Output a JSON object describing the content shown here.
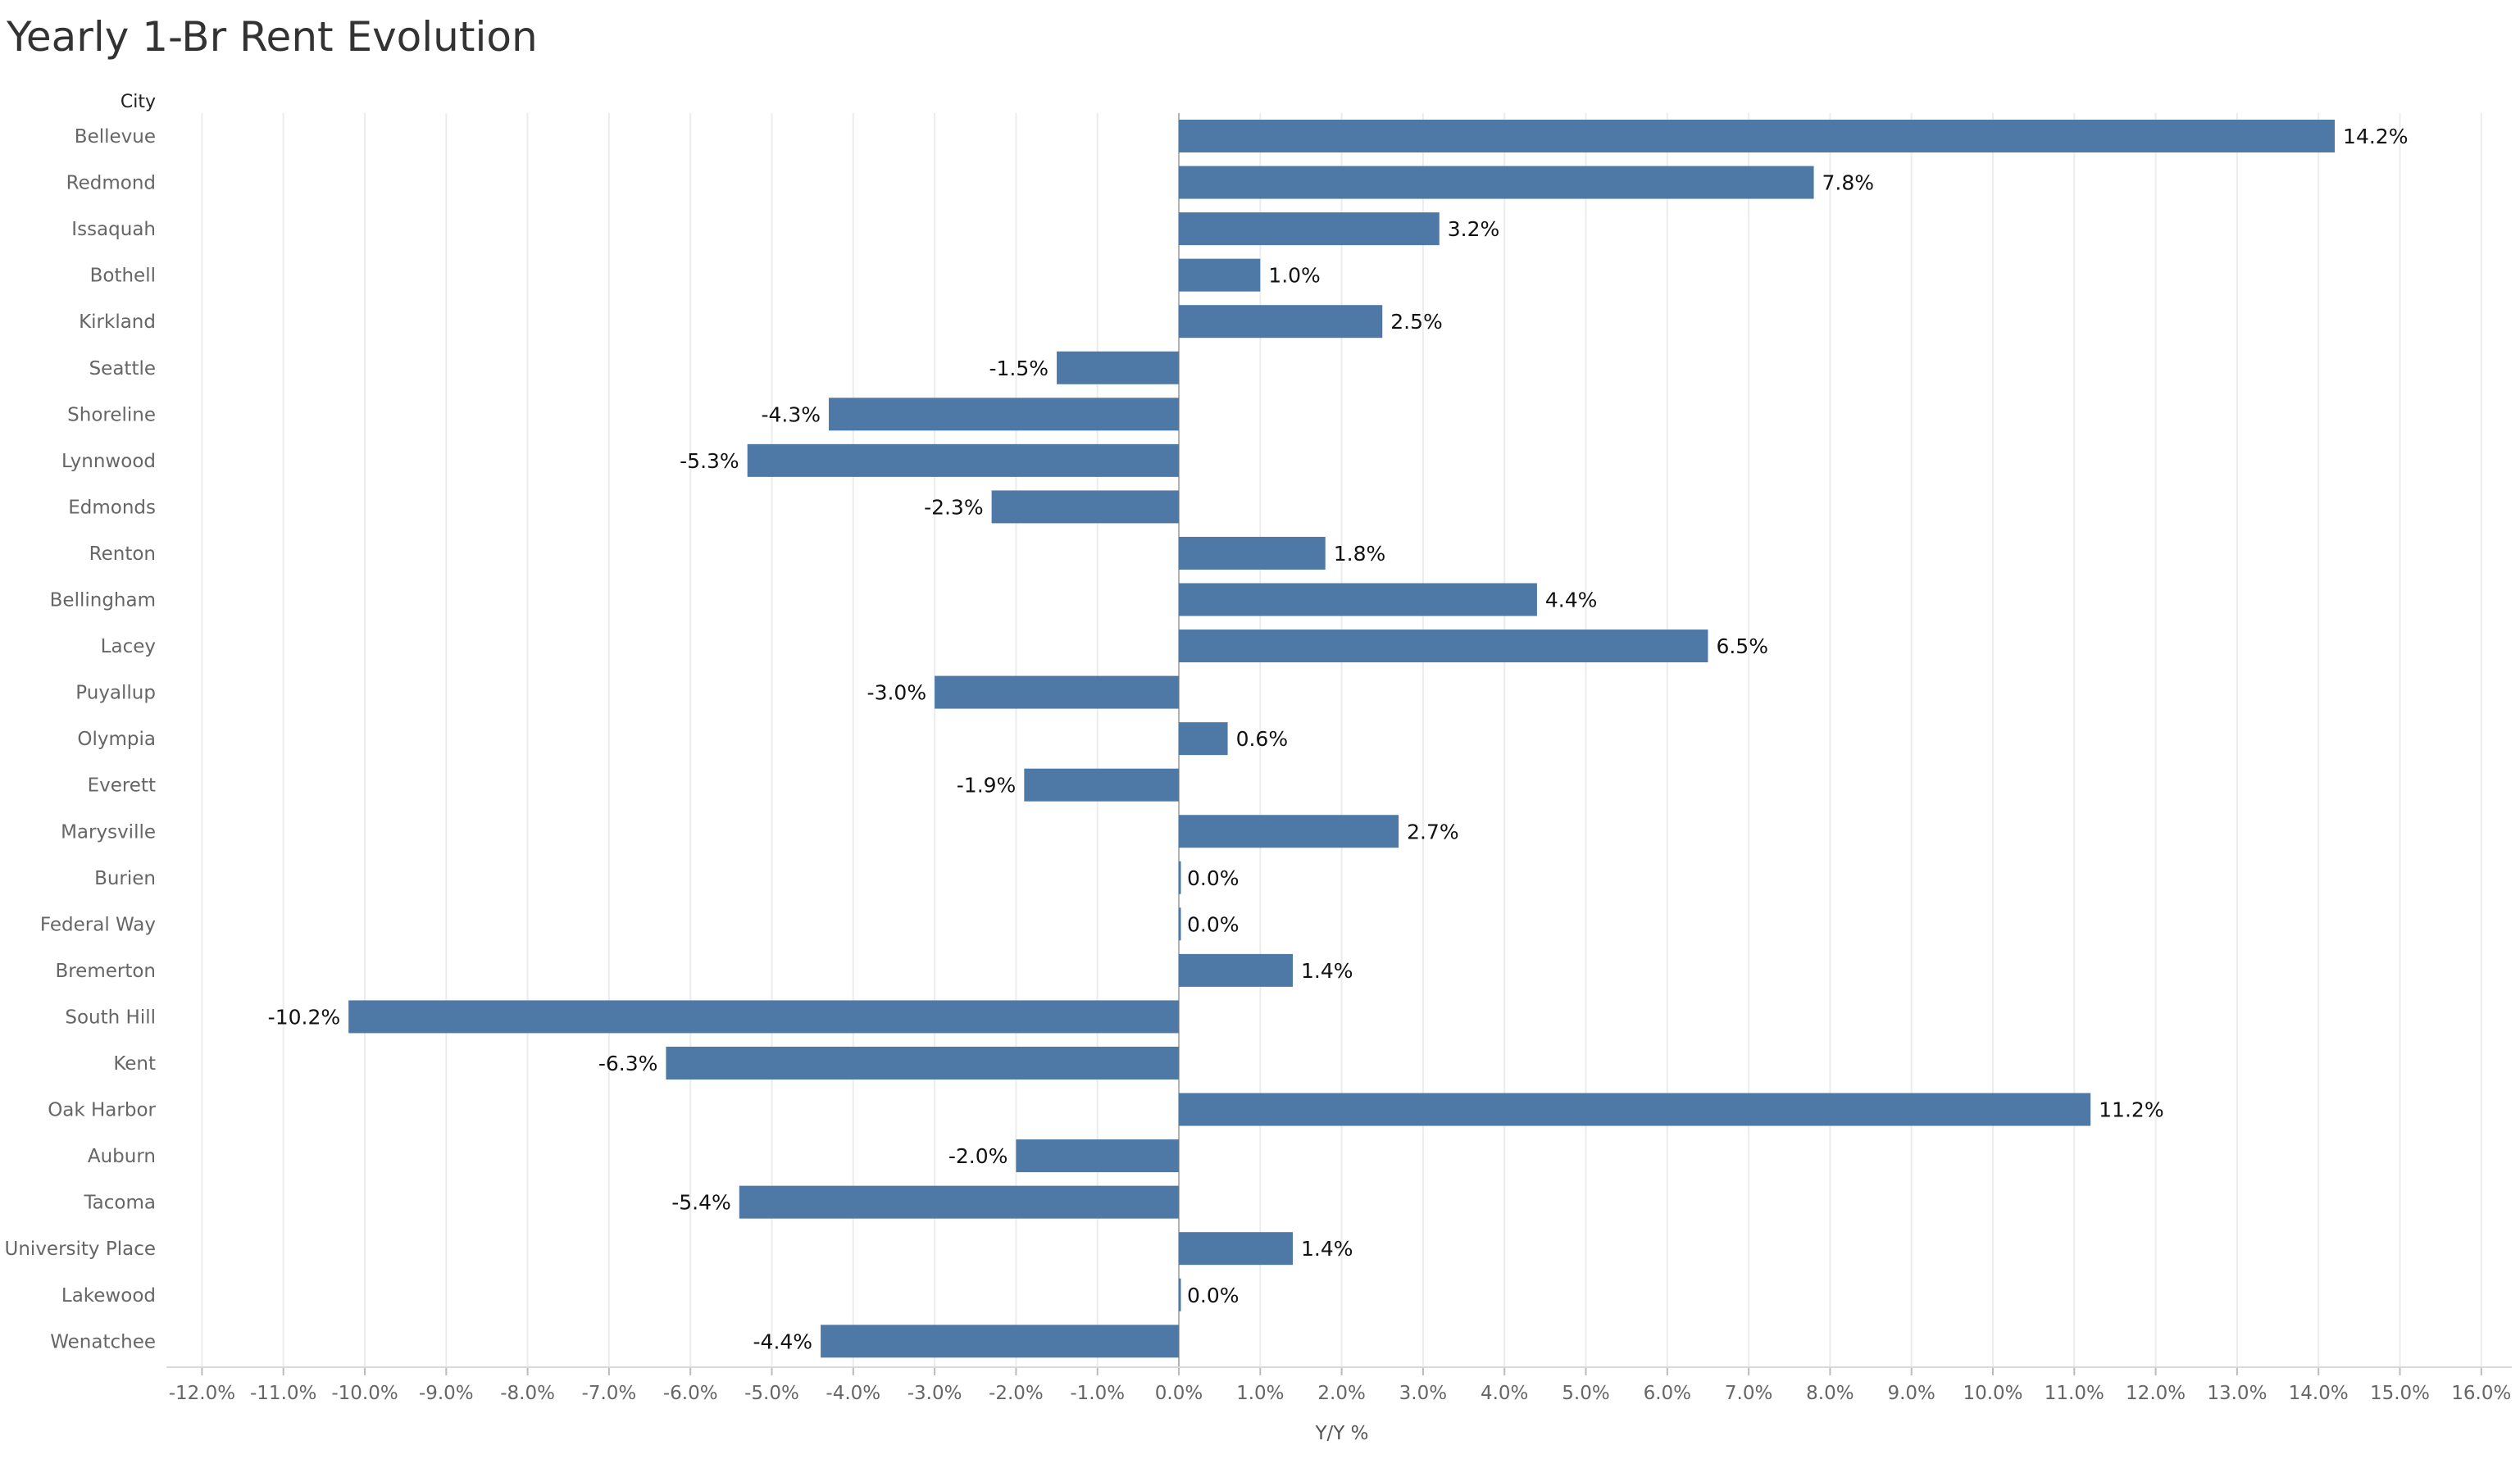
{
  "chart_data": {
    "type": "bar",
    "orientation": "horizontal",
    "title": "Yearly 1-Br Rent Evolution",
    "ylabel": "City",
    "xlabel": "Y/Y %",
    "xlim": [
      -12.5,
      16.4
    ],
    "x_ticks": [
      -12,
      -11,
      -10,
      -9,
      -8,
      -7,
      -6,
      -5,
      -4,
      -3,
      -2,
      -1,
      0,
      1,
      2,
      3,
      4,
      5,
      6,
      7,
      8,
      9,
      10,
      11,
      12,
      13,
      14,
      15,
      16
    ],
    "x_tick_labels": [
      "-12.0%",
      "-11.0%",
      "-10.0%",
      "-9.0%",
      "-8.0%",
      "-7.0%",
      "-6.0%",
      "-5.0%",
      "-4.0%",
      "-3.0%",
      "-2.0%",
      "-1.0%",
      "0.0%",
      "1.0%",
      "2.0%",
      "3.0%",
      "4.0%",
      "5.0%",
      "6.0%",
      "7.0%",
      "8.0%",
      "9.0%",
      "10.0%",
      "11.0%",
      "12.0%",
      "13.0%",
      "14.0%",
      "15.0%",
      "16.0%"
    ],
    "grid": "vertical",
    "bar_color": "#4e79a7",
    "categories": [
      "Bellevue",
      "Redmond",
      "Issaquah",
      "Bothell",
      "Kirkland",
      "Seattle",
      "Shoreline",
      "Lynnwood",
      "Edmonds",
      "Renton",
      "Bellingham",
      "Lacey",
      "Puyallup",
      "Olympia",
      "Everett",
      "Marysville",
      "Burien",
      "Federal Way",
      "Bremerton",
      "South Hill",
      "Kent",
      "Oak Harbor",
      "Auburn",
      "Tacoma",
      "University Place",
      "Lakewood",
      "Wenatchee"
    ],
    "values": [
      14.2,
      7.8,
      3.2,
      1.0,
      2.5,
      -1.5,
      -4.3,
      -5.3,
      -2.3,
      1.8,
      4.4,
      6.5,
      -3.0,
      0.6,
      -1.9,
      2.7,
      0.0,
      0.0,
      1.4,
      -10.2,
      -6.3,
      11.2,
      -2.0,
      -5.4,
      1.4,
      0.0,
      -4.4
    ],
    "data_labels": [
      "14.2%",
      "7.8%",
      "3.2%",
      "1.0%",
      "2.5%",
      "-1.5%",
      "-4.3%",
      "-5.3%",
      "-2.3%",
      "1.8%",
      "4.4%",
      "6.5%",
      "-3.0%",
      "0.6%",
      "-1.9%",
      "2.7%",
      "0.0%",
      "0.0%",
      "1.4%",
      "-10.2%",
      "-6.3%",
      "11.2%",
      "-2.0%",
      "-5.4%",
      "1.4%",
      "0.0%",
      "-4.4%"
    ]
  }
}
